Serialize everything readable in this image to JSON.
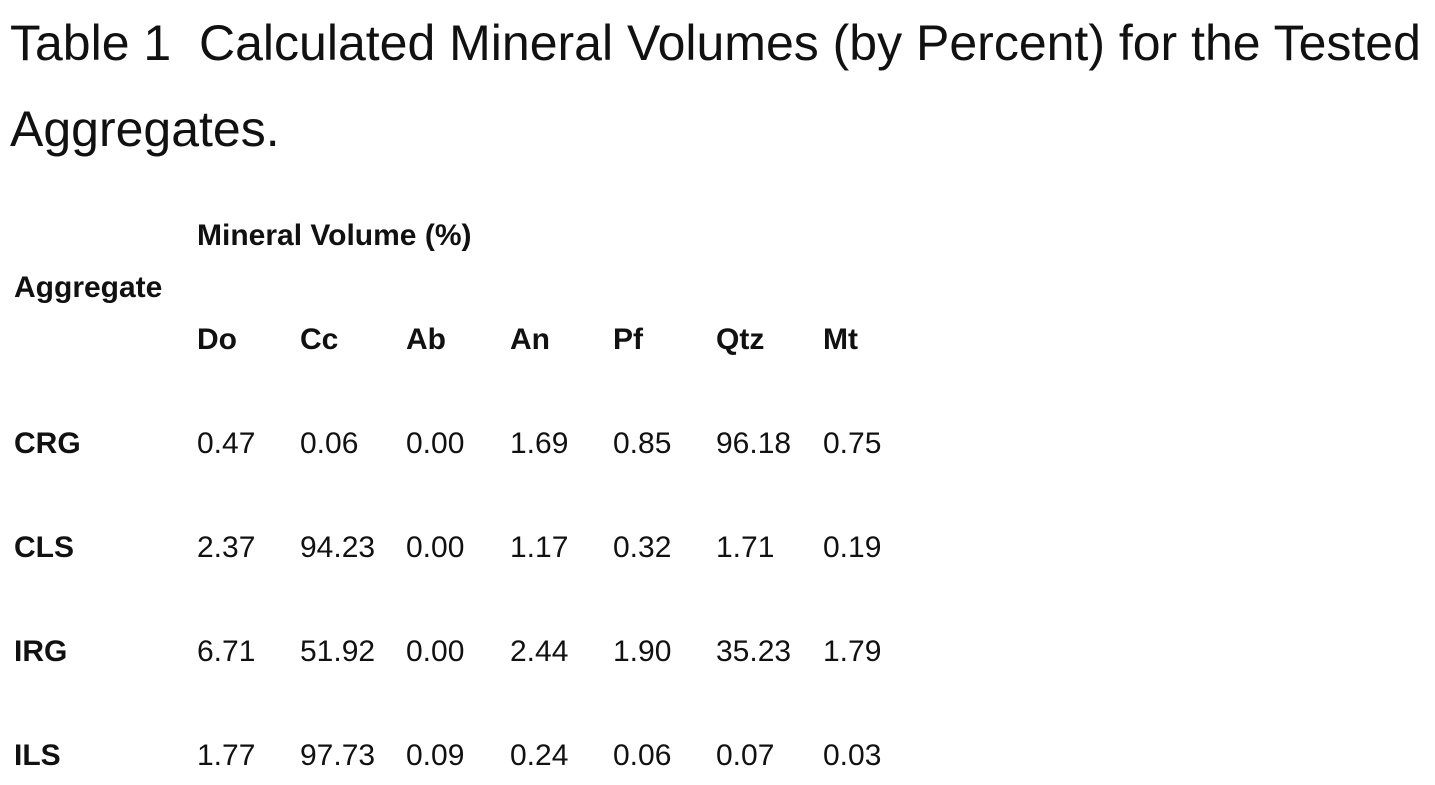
{
  "title": "Table 1  Calculated Mineral Volumes (by Percent) for the Tested Aggregates.",
  "table": {
    "row_header": "Aggregate",
    "group_header": "Mineral Volume (%)",
    "columns": [
      "Do",
      "Cc",
      "Ab",
      "An",
      "Pf",
      "Qtz",
      "Mt"
    ],
    "rows": [
      {
        "label": "CRG",
        "values": [
          "0.47",
          "0.06",
          "0.00",
          "1.69",
          "0.85",
          "96.18",
          "0.75"
        ]
      },
      {
        "label": "CLS",
        "values": [
          "2.37",
          "94.23",
          "0.00",
          "1.17",
          "0.32",
          "1.71",
          "0.19"
        ]
      },
      {
        "label": "IRG",
        "values": [
          "6.71",
          "51.92",
          "0.00",
          "2.44",
          "1.90",
          "35.23",
          "1.79"
        ]
      },
      {
        "label": "ILS",
        "values": [
          "1.77",
          "97.73",
          "0.09",
          "0.24",
          "0.06",
          "0.07",
          "0.03"
        ]
      }
    ]
  }
}
